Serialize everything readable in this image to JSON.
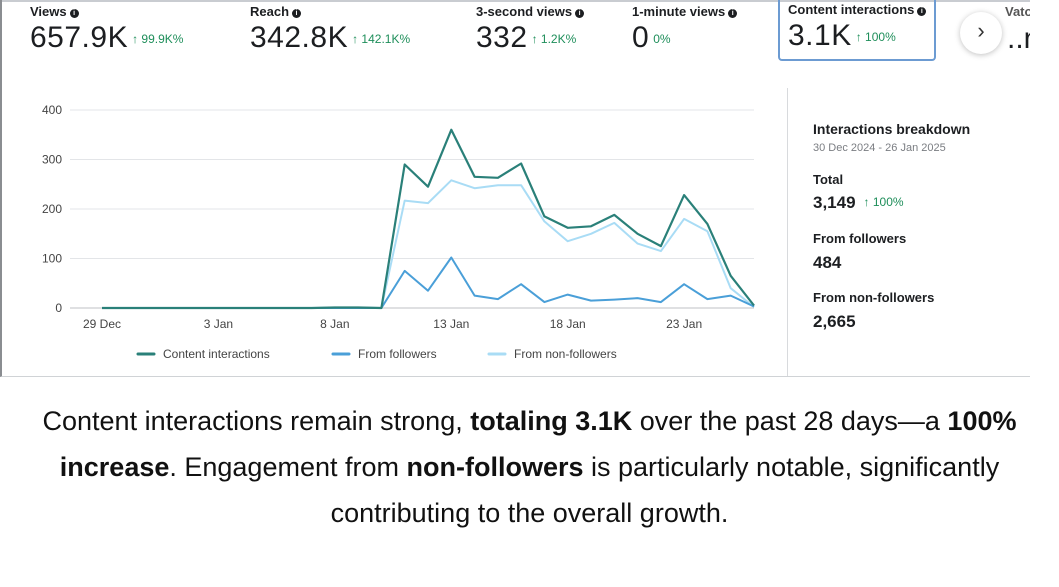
{
  "metrics": [
    {
      "label": "Views",
      "value": "657.9K",
      "change": "↑ 99.9K%"
    },
    {
      "label": "Reach",
      "value": "342.8K",
      "change": "↑ 142.1K%"
    },
    {
      "label": "3-second views",
      "value": "332",
      "change": "↑ 1.2K%"
    },
    {
      "label": "1-minute views",
      "value": "0",
      "change": "0%"
    },
    {
      "label": "Content interactions",
      "value": "3.1K",
      "change": "↑ 100%"
    }
  ],
  "cut_off_metric": {
    "label": "Vato",
    "value": "..n"
  },
  "next_button": "›",
  "chart_data": {
    "type": "line",
    "title": "",
    "xlabel": "",
    "ylabel": "",
    "ylim": [
      0,
      400
    ],
    "yticks": [
      0,
      100,
      200,
      300,
      400
    ],
    "x_tick_labels": [
      "29 Dec",
      "3 Jan",
      "8 Jan",
      "13 Jan",
      "18 Jan",
      "23 Jan"
    ],
    "x_tick_indices": [
      0,
      5,
      10,
      15,
      20,
      25
    ],
    "legend_position": "bottom",
    "x": [
      "29 Dec",
      "30 Dec",
      "31 Dec",
      "1 Jan",
      "2 Jan",
      "3 Jan",
      "4 Jan",
      "5 Jan",
      "6 Jan",
      "7 Jan",
      "8 Jan",
      "9 Jan",
      "10 Jan",
      "11 Jan",
      "12 Jan",
      "13 Jan",
      "14 Jan",
      "15 Jan",
      "16 Jan",
      "17 Jan",
      "18 Jan",
      "19 Jan",
      "20 Jan",
      "21 Jan",
      "22 Jan",
      "23 Jan",
      "24 Jan",
      "25 Jan",
      "26 Jan"
    ],
    "series": [
      {
        "name": "Content interactions",
        "color": "#2a8079",
        "values": [
          0,
          0,
          0,
          0,
          0,
          0,
          0,
          0,
          0,
          0,
          1,
          1,
          0,
          290,
          245,
          360,
          265,
          263,
          292,
          185,
          162,
          165,
          188,
          150,
          125,
          228,
          170,
          65,
          5
        ]
      },
      {
        "name": "From followers",
        "color": "#4a9fd8",
        "values": [
          0,
          0,
          0,
          0,
          0,
          0,
          0,
          0,
          0,
          0,
          0,
          0,
          0,
          75,
          35,
          102,
          25,
          18,
          48,
          12,
          27,
          15,
          17,
          20,
          12,
          48,
          18,
          25,
          3
        ]
      },
      {
        "name": "From non-followers",
        "color": "#a9dcf5",
        "values": [
          0,
          0,
          0,
          0,
          0,
          0,
          0,
          0,
          0,
          0,
          1,
          1,
          0,
          217,
          212,
          258,
          242,
          248,
          248,
          175,
          135,
          150,
          172,
          130,
          115,
          180,
          155,
          40,
          2
        ]
      }
    ]
  },
  "breakdown": {
    "title": "Interactions breakdown",
    "date_range": "30 Dec 2024 - 26 Jan 2025",
    "total_label": "Total",
    "total_value": "3,149",
    "total_change": "↑ 100%",
    "followers_label": "From followers",
    "followers_value": "484",
    "nonfollowers_label": "From non-followers",
    "nonfollowers_value": "2,665"
  },
  "caption": {
    "p1": "Content interactions remain strong, ",
    "b1": "totaling 3.1K",
    "p2": " over the past 28 days—a ",
    "b2": "100% increase",
    "p3": ". Engagement from ",
    "b3": "non-followers",
    "p4": " is particularly notable, significantly contributing to the overall growth."
  }
}
